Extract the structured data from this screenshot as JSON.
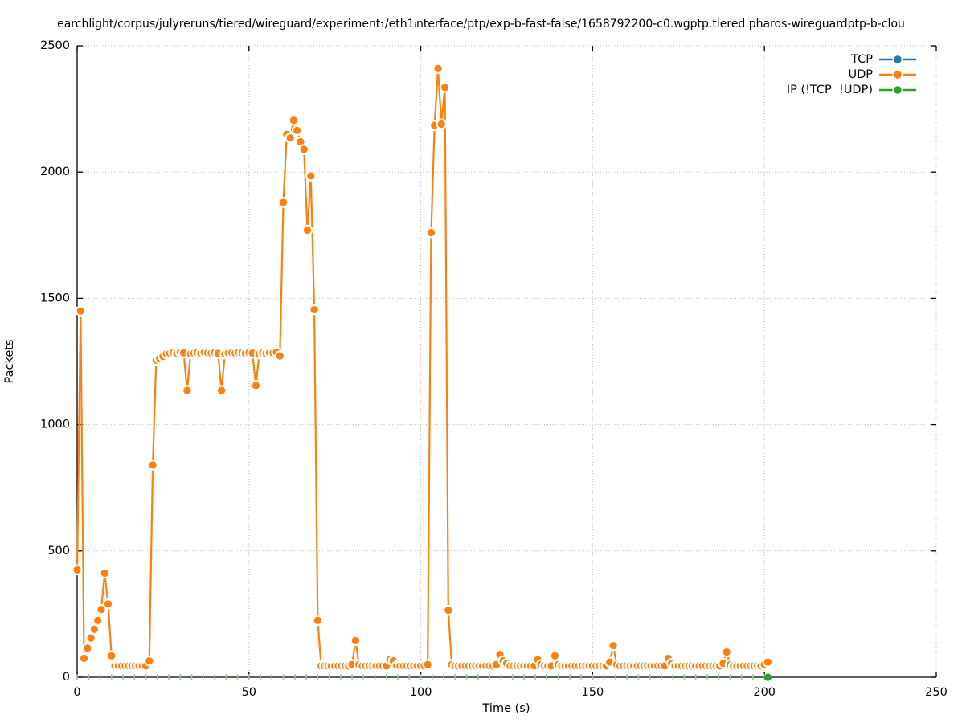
{
  "title": "earchlight/corpus/julyreruns/tiered/wireguard/experiment₁/eth1ᵢnterface/ptp/exp-b-fast-false/1658792200-c0.wgptp.tiered.pharos-wireguardptp-b-clou",
  "legend": {
    "items": [
      {
        "label": "TCP",
        "color": "#1f77b4"
      },
      {
        "label": "UDP",
        "color": "#ff7f0e"
      },
      {
        "label": "IP (!TCP  !UDP)",
        "color": "#2ca02c"
      }
    ]
  },
  "chart_data": {
    "type": "line",
    "title": "earchlight/corpus/julyreruns/tiered/wireguard/experiment₁/eth1ᵢnterface/ptp/exp-b-fast-false/1658792200-c0.wgptp.tiered.pharos-wireguardptp-b-clou",
    "xlabel": "Time (s)",
    "ylabel": "Packets",
    "xlim": [
      0,
      250
    ],
    "ylim": [
      0,
      2500
    ],
    "xticks": [
      0,
      50,
      100,
      150,
      200,
      250
    ],
    "yticks": [
      0,
      500,
      1000,
      1500,
      2000,
      2500
    ],
    "grid": true,
    "legend_position": "top-right",
    "marker_style": "filled-circle-with-white-halo",
    "series": [
      {
        "name": "TCP",
        "color": "#1f77b4",
        "points": []
      },
      {
        "name": "UDP",
        "color": "#ff7f0e",
        "points": [
          [
            0,
            425
          ],
          [
            1,
            1450
          ],
          [
            2,
            75
          ],
          [
            3,
            115
          ],
          [
            4,
            155
          ],
          [
            5,
            190
          ],
          [
            6,
            225
          ],
          [
            7,
            268
          ],
          [
            8,
            412
          ],
          [
            9,
            290
          ],
          [
            10,
            85
          ],
          [
            11,
            45
          ],
          [
            12,
            45
          ],
          [
            13,
            45
          ],
          [
            14,
            45
          ],
          [
            15,
            45
          ],
          [
            16,
            45
          ],
          [
            17,
            45
          ],
          [
            18,
            45
          ],
          [
            19,
            45
          ],
          [
            20,
            45
          ],
          [
            21,
            65
          ],
          [
            22,
            840
          ],
          [
            23,
            1255
          ],
          [
            24,
            1262
          ],
          [
            25,
            1270
          ],
          [
            26,
            1280
          ],
          [
            27,
            1282
          ],
          [
            28,
            1285
          ],
          [
            29,
            1283
          ],
          [
            30,
            1287
          ],
          [
            31,
            1284
          ],
          [
            32,
            1135
          ],
          [
            33,
            1280
          ],
          [
            34,
            1283
          ],
          [
            35,
            1285
          ],
          [
            36,
            1282
          ],
          [
            37,
            1286
          ],
          [
            38,
            1284
          ],
          [
            39,
            1283
          ],
          [
            40,
            1285
          ],
          [
            41,
            1282
          ],
          [
            42,
            1135
          ],
          [
            43,
            1280
          ],
          [
            44,
            1284
          ],
          [
            45,
            1285
          ],
          [
            46,
            1283
          ],
          [
            47,
            1286
          ],
          [
            48,
            1284
          ],
          [
            49,
            1282
          ],
          [
            50,
            1285
          ],
          [
            51,
            1283
          ],
          [
            52,
            1155
          ],
          [
            53,
            1280
          ],
          [
            54,
            1284
          ],
          [
            55,
            1282
          ],
          [
            56,
            1285
          ],
          [
            57,
            1284
          ],
          [
            58,
            1287
          ],
          [
            59,
            1272
          ],
          [
            60,
            1880
          ],
          [
            61,
            2150
          ],
          [
            62,
            2135
          ],
          [
            63,
            2205
          ],
          [
            64,
            2165
          ],
          [
            65,
            2120
          ],
          [
            66,
            2090
          ],
          [
            67,
            1770
          ],
          [
            68,
            1985
          ],
          [
            69,
            1455
          ],
          [
            70,
            225
          ],
          [
            71,
            45
          ],
          [
            72,
            45
          ],
          [
            73,
            45
          ],
          [
            74,
            45
          ],
          [
            75,
            45
          ],
          [
            76,
            45
          ],
          [
            77,
            45
          ],
          [
            78,
            45
          ],
          [
            79,
            45
          ],
          [
            80,
            50
          ],
          [
            81,
            145
          ],
          [
            82,
            50
          ],
          [
            83,
            45
          ],
          [
            84,
            45
          ],
          [
            85,
            45
          ],
          [
            86,
            45
          ],
          [
            87,
            45
          ],
          [
            88,
            45
          ],
          [
            89,
            45
          ],
          [
            90,
            45
          ],
          [
            91,
            70
          ],
          [
            92,
            65
          ],
          [
            93,
            45
          ],
          [
            94,
            45
          ],
          [
            95,
            45
          ],
          [
            96,
            45
          ],
          [
            97,
            45
          ],
          [
            98,
            45
          ],
          [
            99,
            45
          ],
          [
            100,
            45
          ],
          [
            101,
            45
          ],
          [
            102,
            50
          ],
          [
            103,
            1760
          ],
          [
            104,
            2185
          ],
          [
            105,
            2410
          ],
          [
            106,
            2190
          ],
          [
            107,
            2335
          ],
          [
            108,
            265
          ],
          [
            109,
            50
          ],
          [
            110,
            45
          ],
          [
            111,
            45
          ],
          [
            112,
            45
          ],
          [
            113,
            45
          ],
          [
            114,
            45
          ],
          [
            115,
            45
          ],
          [
            116,
            45
          ],
          [
            117,
            45
          ],
          [
            118,
            45
          ],
          [
            119,
            45
          ],
          [
            120,
            45
          ],
          [
            121,
            45
          ],
          [
            122,
            50
          ],
          [
            123,
            90
          ],
          [
            124,
            65
          ],
          [
            125,
            55
          ],
          [
            126,
            45
          ],
          [
            127,
            45
          ],
          [
            128,
            45
          ],
          [
            129,
            45
          ],
          [
            130,
            45
          ],
          [
            131,
            45
          ],
          [
            132,
            45
          ],
          [
            133,
            45
          ],
          [
            134,
            70
          ],
          [
            135,
            50
          ],
          [
            136,
            45
          ],
          [
            137,
            45
          ],
          [
            138,
            45
          ],
          [
            139,
            85
          ],
          [
            140,
            50
          ],
          [
            141,
            45
          ],
          [
            142,
            45
          ],
          [
            143,
            45
          ],
          [
            144,
            45
          ],
          [
            145,
            45
          ],
          [
            146,
            45
          ],
          [
            147,
            45
          ],
          [
            148,
            45
          ],
          [
            149,
            45
          ],
          [
            150,
            45
          ],
          [
            151,
            45
          ],
          [
            152,
            45
          ],
          [
            153,
            45
          ],
          [
            154,
            45
          ],
          [
            155,
            60
          ],
          [
            156,
            125
          ],
          [
            157,
            50
          ],
          [
            158,
            45
          ],
          [
            159,
            45
          ],
          [
            160,
            45
          ],
          [
            161,
            45
          ],
          [
            162,
            45
          ],
          [
            163,
            45
          ],
          [
            164,
            45
          ],
          [
            165,
            45
          ],
          [
            166,
            45
          ],
          [
            167,
            45
          ],
          [
            168,
            45
          ],
          [
            169,
            45
          ],
          [
            170,
            45
          ],
          [
            171,
            45
          ],
          [
            172,
            75
          ],
          [
            173,
            55
          ],
          [
            174,
            45
          ],
          [
            175,
            45
          ],
          [
            176,
            45
          ],
          [
            177,
            45
          ],
          [
            178,
            45
          ],
          [
            179,
            45
          ],
          [
            180,
            45
          ],
          [
            181,
            45
          ],
          [
            182,
            45
          ],
          [
            183,
            45
          ],
          [
            184,
            45
          ],
          [
            185,
            45
          ],
          [
            186,
            45
          ],
          [
            187,
            45
          ],
          [
            188,
            55
          ],
          [
            189,
            100
          ],
          [
            190,
            50
          ],
          [
            191,
            45
          ],
          [
            192,
            45
          ],
          [
            193,
            45
          ],
          [
            194,
            45
          ],
          [
            195,
            45
          ],
          [
            196,
            45
          ],
          [
            197,
            45
          ],
          [
            198,
            45
          ],
          [
            199,
            45
          ],
          [
            200,
            50
          ],
          [
            201,
            60
          ]
        ]
      },
      {
        "name": "IP (!TCP  !UDP)",
        "color": "#2ca02c",
        "baseline_run": {
          "t_start": 0,
          "t_end": 200,
          "step_s": 3.3333,
          "value": 0,
          "tick_color": "#8ecf8e"
        },
        "points": [
          [
            201,
            0
          ]
        ]
      }
    ]
  }
}
